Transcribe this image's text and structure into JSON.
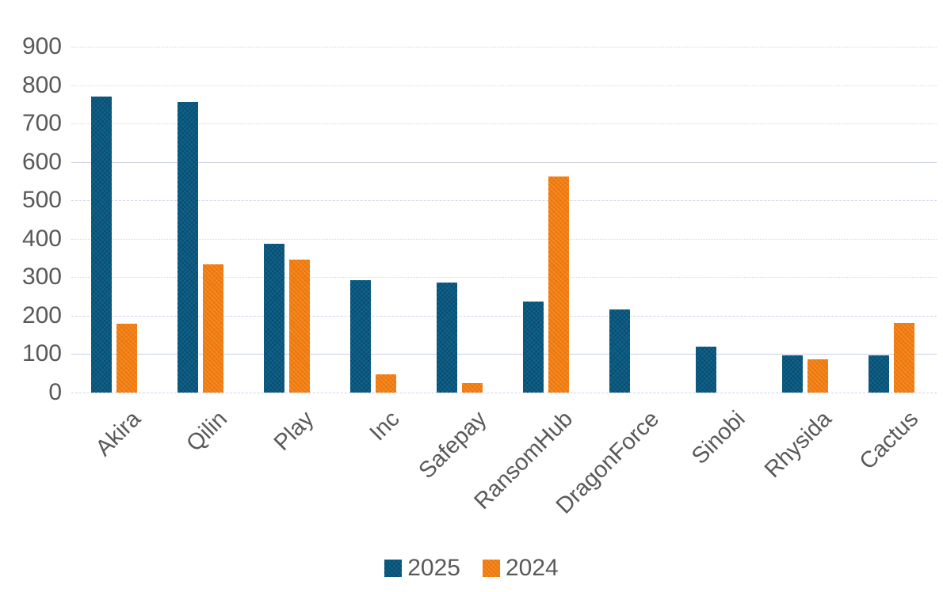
{
  "chart_data": {
    "type": "bar",
    "title": "",
    "xlabel": "",
    "ylabel": "",
    "categories": [
      "Akira",
      "Qilin",
      "Play",
      "Inc",
      "Safepay",
      "RansomHub",
      "DragonForce",
      "Sinobi",
      "Rhysida",
      "Cactus"
    ],
    "series": [
      {
        "name": "2025",
        "color": "#0f628a",
        "values": [
          770,
          755,
          388,
          293,
          287,
          237,
          217,
          120,
          97,
          97
        ]
      },
      {
        "name": "2024",
        "color": "#f17c10",
        "values": [
          180,
          334,
          346,
          48,
          25,
          562,
          0,
          0,
          87,
          181
        ]
      }
    ],
    "ylim": [
      0,
      900
    ],
    "ytick_interval": 100,
    "yticks": [
      "900",
      "800",
      "700",
      "600",
      "500",
      "400",
      "300",
      "200",
      "100",
      "0"
    ],
    "grid": true,
    "legend_position": "bottom"
  },
  "legend": {
    "items": [
      {
        "label": "2025",
        "color": "#0f628a"
      },
      {
        "label": "2024",
        "color": "#f17c10"
      }
    ]
  }
}
